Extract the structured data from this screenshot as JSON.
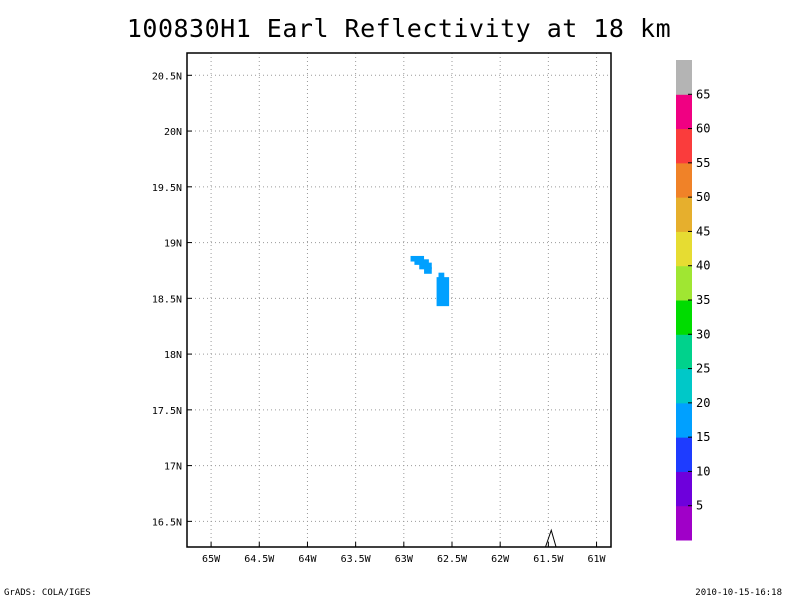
{
  "title": "100830H1 Earl Reflectivity at 18 km",
  "footer": {
    "left": "GrADS: COLA/IGES",
    "right": "2010-10-15-16:18"
  },
  "map": {
    "lon_range": [
      -65.25,
      -60.85
    ],
    "lat_range": [
      16.27,
      20.7
    ],
    "lon_ticks": [
      {
        "value": -65,
        "label": "65W"
      },
      {
        "value": -64.5,
        "label": "64.5W"
      },
      {
        "value": -64,
        "label": "64W"
      },
      {
        "value": -63.5,
        "label": "63.5W"
      },
      {
        "value": -63,
        "label": "63W"
      },
      {
        "value": -62.5,
        "label": "62.5W"
      },
      {
        "value": -62,
        "label": "62W"
      },
      {
        "value": -61.5,
        "label": "61.5W"
      },
      {
        "value": -61,
        "label": "61W"
      }
    ],
    "lat_ticks": [
      {
        "value": 16.5,
        "label": "16.5N"
      },
      {
        "value": 17,
        "label": "17N"
      },
      {
        "value": 17.5,
        "label": "17.5N"
      },
      {
        "value": 18,
        "label": "18N"
      },
      {
        "value": 18.5,
        "label": "18.5N"
      },
      {
        "value": 19,
        "label": "19N"
      },
      {
        "value": 19.5,
        "label": "19.5N"
      },
      {
        "value": 20,
        "label": "20N"
      },
      {
        "value": 20.5,
        "label": "20.5N"
      }
    ],
    "grid": "dotted",
    "reflectivity_color": "#00a0ff",
    "reflectivity_cells": [
      {
        "lon_min": -62.93,
        "lon_max": -62.79,
        "lat_min": 18.83,
        "lat_max": 18.88
      },
      {
        "lon_min": -62.89,
        "lon_max": -62.74,
        "lat_min": 18.8,
        "lat_max": 18.85
      },
      {
        "lon_min": -62.84,
        "lon_max": -62.71,
        "lat_min": 18.76,
        "lat_max": 18.82
      },
      {
        "lon_min": -62.79,
        "lon_max": -62.71,
        "lat_min": 18.72,
        "lat_max": 18.78
      },
      {
        "lon_min": -62.64,
        "lon_max": -62.58,
        "lat_min": 18.67,
        "lat_max": 18.73
      },
      {
        "lon_min": -62.66,
        "lon_max": -62.53,
        "lat_min": 18.43,
        "lat_max": 18.69
      }
    ],
    "island_outline": [
      [
        -61.53,
        16.27
      ],
      [
        -61.47,
        16.42
      ],
      [
        -61.42,
        16.27
      ]
    ]
  },
  "colorbar": {
    "colors": [
      "#a000c8",
      "#6e00dc",
      "#1e3cff",
      "#00a0ff",
      "#00c8c8",
      "#00d28c",
      "#00dc00",
      "#a0e632",
      "#e6dc32",
      "#e6af2d",
      "#f08228",
      "#fa3c3c",
      "#f00082",
      "#b4b4b4"
    ],
    "labels": [
      "5",
      "10",
      "15",
      "20",
      "25",
      "30",
      "35",
      "40",
      "45",
      "50",
      "55",
      "60",
      "65"
    ]
  }
}
